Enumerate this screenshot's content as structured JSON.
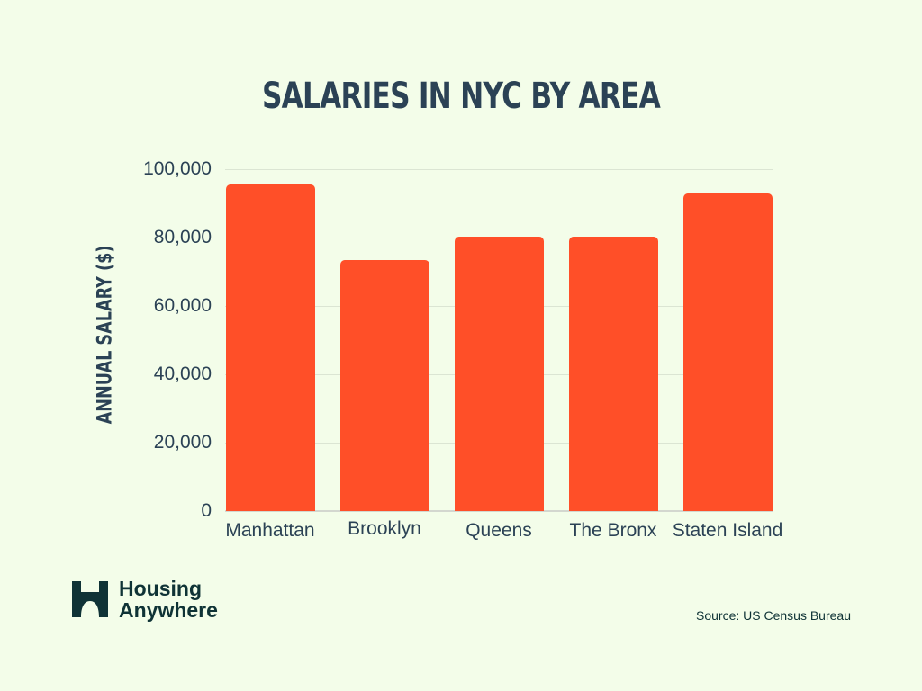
{
  "title": "SALARIES IN NYC BY AREA",
  "ylabel": "ANNUAL SALARY ($)",
  "yticks": [
    "100,000",
    "80,000",
    "60,000",
    "40,000",
    "20,000",
    "0"
  ],
  "logo": {
    "line1": "Housing",
    "line2": "Anywhere"
  },
  "source": "Source: US Census Bureau",
  "colors": {
    "background": "#f3fde9",
    "bar": "#ff4f28",
    "text": "#2b4255",
    "logo": "#0f3336"
  },
  "chart_data": {
    "type": "bar",
    "title": "SALARIES IN NYC BY AREA",
    "xlabel": "",
    "ylabel": "ANNUAL SALARY ($)",
    "categories": [
      "Manhattan",
      "Brooklyn",
      "Queens",
      "The Bronx",
      "Staten Island"
    ],
    "values": [
      95500,
      73500,
      80200,
      80200,
      93000
    ],
    "ylim": [
      0,
      100000
    ],
    "yticks": [
      0,
      20000,
      40000,
      60000,
      80000,
      100000
    ],
    "grid": true,
    "legend": null
  }
}
